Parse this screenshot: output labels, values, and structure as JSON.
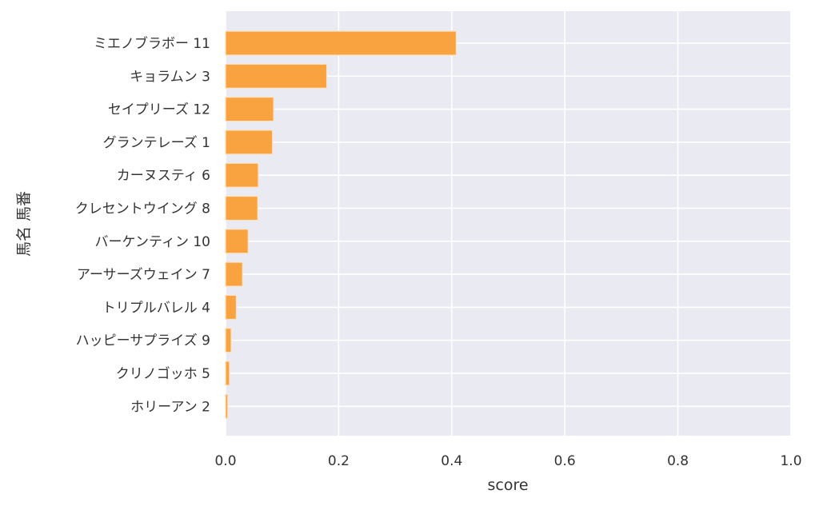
{
  "chart_data": {
    "type": "bar",
    "orientation": "horizontal",
    "title": "",
    "xlabel": "score",
    "ylabel": "馬名 馬番",
    "xlim": [
      0,
      1.0
    ],
    "xticks": [
      "0.0",
      "0.2",
      "0.4",
      "0.6",
      "0.8",
      "1.0"
    ],
    "grid": true,
    "bar_color": "#f99a2c",
    "background_color": "#eaeaf2",
    "categories": [
      "ミエノブラボー 11",
      "キョラムン 3",
      "セイプリーズ 12",
      "グランテレーズ 1",
      "カーヌスティ 6",
      "クレセントウイング 8",
      "バーケンティン 10",
      "アーサーズウェイン 7",
      "トリプルバレル 4",
      "ハッピーサプライズ 9",
      "クリノゴッホ 5",
      "ホリーアン 2"
    ],
    "values": [
      0.408,
      0.179,
      0.085,
      0.083,
      0.058,
      0.057,
      0.04,
      0.03,
      0.019,
      0.01,
      0.007,
      0.004
    ]
  }
}
